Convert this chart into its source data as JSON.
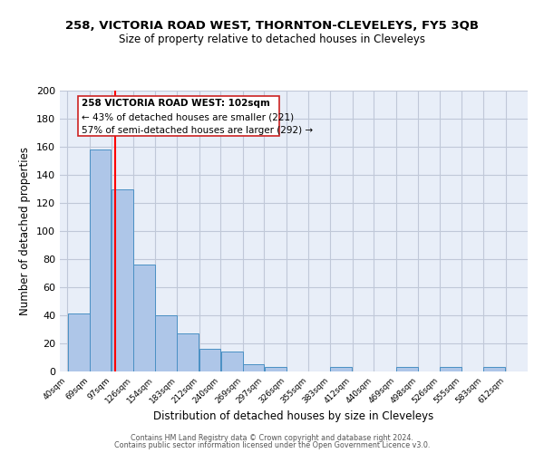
{
  "title": "258, VICTORIA ROAD WEST, THORNTON-CLEVELEYS, FY5 3QB",
  "subtitle": "Size of property relative to detached houses in Cleveleys",
  "xlabel": "Distribution of detached houses by size in Cleveleys",
  "ylabel": "Number of detached properties",
  "bar_left_edges": [
    40,
    69,
    97,
    126,
    154,
    183,
    212,
    240,
    269,
    297,
    326,
    355,
    383,
    412,
    440,
    469,
    498,
    526,
    555,
    583
  ],
  "bar_widths": [
    29,
    28,
    29,
    28,
    29,
    29,
    28,
    29,
    28,
    29,
    29,
    28,
    29,
    28,
    29,
    29,
    28,
    29,
    28,
    29
  ],
  "bar_heights": [
    41,
    158,
    130,
    76,
    40,
    27,
    16,
    14,
    5,
    3,
    0,
    0,
    3,
    0,
    0,
    3,
    0,
    3,
    0,
    3
  ],
  "bar_color": "#aec6e8",
  "bar_edge_color": "#4a90c4",
  "bg_color": "#e8eef8",
  "grid_color": "#c0c8d8",
  "red_line_x": 102,
  "ylim": [
    0,
    200
  ],
  "yticks": [
    0,
    20,
    40,
    60,
    80,
    100,
    120,
    140,
    160,
    180,
    200
  ],
  "tick_labels": [
    "40sqm",
    "69sqm",
    "97sqm",
    "126sqm",
    "154sqm",
    "183sqm",
    "212sqm",
    "240sqm",
    "269sqm",
    "297sqm",
    "326sqm",
    "355sqm",
    "383sqm",
    "412sqm",
    "440sqm",
    "469sqm",
    "498sqm",
    "526sqm",
    "555sqm",
    "583sqm",
    "612sqm"
  ],
  "annotation_line1": "258 VICTORIA ROAD WEST: 102sqm",
  "annotation_line2": "← 43% of detached houses are smaller (221)",
  "annotation_line3": "57% of semi-detached houses are larger (292) →",
  "footer1": "Contains HM Land Registry data © Crown copyright and database right 2024.",
  "footer2": "Contains public sector information licensed under the Open Government Licence v3.0."
}
